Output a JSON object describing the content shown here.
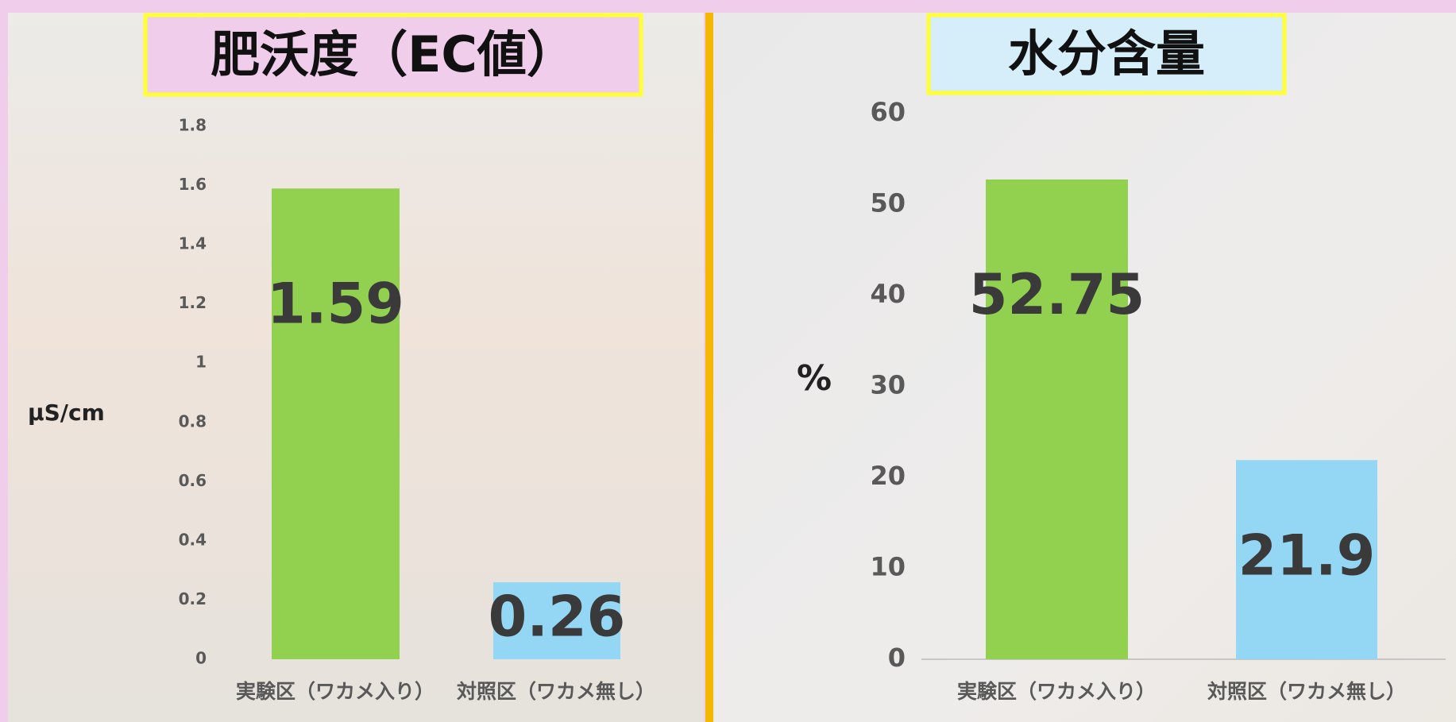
{
  "chart_data": [
    {
      "type": "bar",
      "title": "肥沃度（EC値）",
      "y_label": "μS/cm",
      "categories": [
        "実験区（ワカメ入り）",
        "対照区（ワカメ無し）"
      ],
      "values": [
        1.59,
        0.26
      ],
      "colors": [
        "#92d050",
        "#93d7f5"
      ],
      "ylim": [
        0,
        1.8
      ],
      "yticks": [
        0,
        0.2,
        0.4,
        0.6,
        0.8,
        1,
        1.2,
        1.4,
        1.6,
        1.8
      ],
      "grid": false
    },
    {
      "type": "bar",
      "title": "水分含量",
      "y_label": "%",
      "categories": [
        "実験区（ワカメ入り）",
        "対照区（ワカメ無し）"
      ],
      "values": [
        52.75,
        21.9
      ],
      "colors": [
        "#92d050",
        "#93d7f5"
      ],
      "ylim": [
        0,
        60
      ],
      "yticks": [
        0,
        10,
        20,
        30,
        40,
        50,
        60
      ],
      "grid": false
    }
  ]
}
